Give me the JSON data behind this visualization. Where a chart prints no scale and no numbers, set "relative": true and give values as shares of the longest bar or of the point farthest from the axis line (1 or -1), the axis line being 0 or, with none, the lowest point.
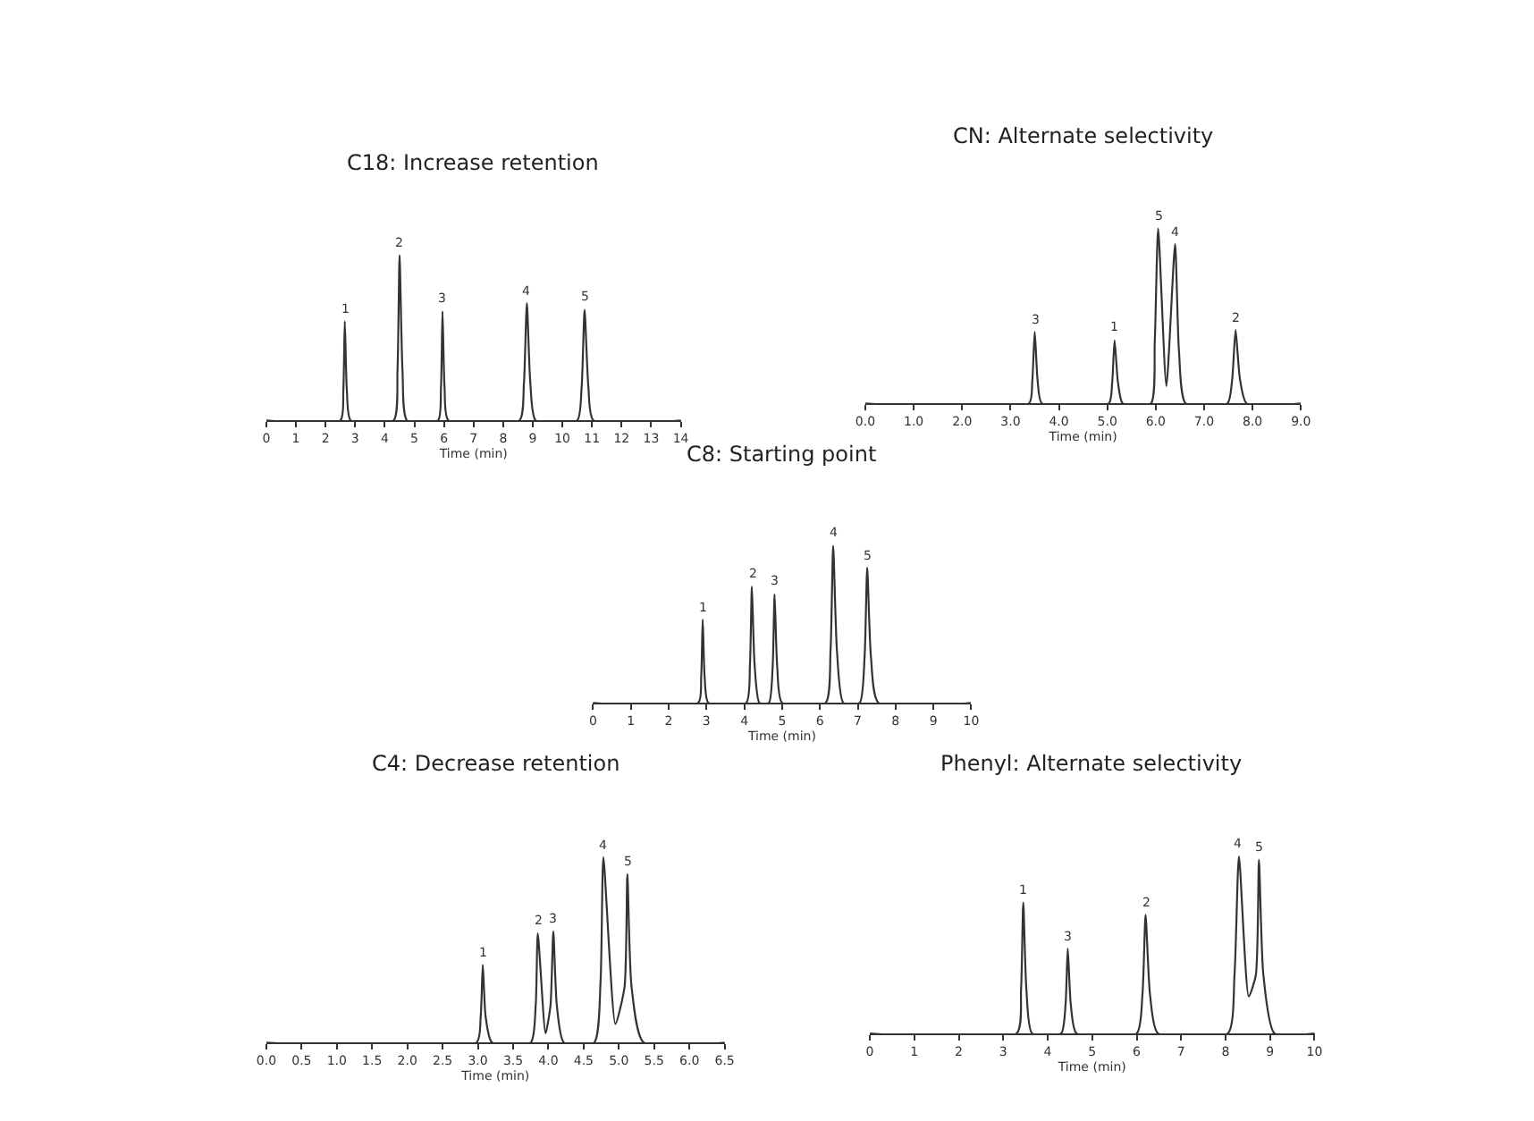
{
  "chart_data": [
    {
      "type": "line",
      "title": "C18: Increase retention",
      "xlabel": "Time (min)",
      "relative": true,
      "color": "#333333",
      "xlim": [
        0,
        14
      ],
      "xticks": [
        0,
        1,
        2,
        3,
        4,
        5,
        6,
        7,
        8,
        9,
        10,
        11,
        12,
        13,
        14
      ],
      "x": [
        0,
        2.5,
        2.6,
        2.65,
        2.72,
        2.85,
        4.3,
        4.43,
        4.5,
        4.6,
        4.75,
        5.8,
        5.9,
        5.95,
        6.02,
        6.15,
        8.55,
        8.7,
        8.8,
        8.92,
        9.1,
        10.5,
        10.65,
        10.75,
        10.88,
        11.05,
        14
      ],
      "values": [
        0,
        0,
        0.18,
        0.6,
        0.18,
        0,
        0,
        0.3,
        1.0,
        0.3,
        0,
        0,
        0.2,
        0.66,
        0.2,
        0,
        0,
        0.22,
        0.71,
        0.22,
        0,
        0,
        0.2,
        0.67,
        0.2,
        0,
        0
      ],
      "annotations": [
        {
          "text": "1",
          "x": 2.65,
          "y": 0.6
        },
        {
          "text": "2",
          "x": 4.5,
          "y": 1.0
        },
        {
          "text": "3",
          "x": 5.95,
          "y": 0.66
        },
        {
          "text": "4",
          "x": 8.8,
          "y": 0.71
        },
        {
          "text": "5",
          "x": 10.75,
          "y": 0.67
        }
      ]
    },
    {
      "type": "line",
      "title": "CN: Alternate selectivity",
      "xlabel": "Time (min)",
      "relative": true,
      "color": "#333333",
      "xlim": [
        0,
        9
      ],
      "xticks": [
        {
          "value": 0,
          "label": "0.0"
        },
        {
          "value": 1,
          "label": "1.0"
        },
        {
          "value": 2,
          "label": "2.0"
        },
        {
          "value": 3,
          "label": "3.0"
        },
        {
          "value": 4,
          "label": "4.0"
        },
        {
          "value": 5,
          "label": "5.0"
        },
        {
          "value": 6,
          "label": "6.0"
        },
        {
          "value": 7,
          "label": "7.0"
        },
        {
          "value": 8,
          "label": "8.0"
        },
        {
          "value": 9,
          "label": "9.0"
        }
      ],
      "x": [
        0,
        3.38,
        3.45,
        3.5,
        3.56,
        3.65,
        5.03,
        5.1,
        5.15,
        5.22,
        5.32,
        5.9,
        5.98,
        6.05,
        6.22,
        6.4,
        6.48,
        6.62,
        7.48,
        7.58,
        7.65,
        7.74,
        7.88,
        9
      ],
      "values": [
        0,
        0,
        0.13,
        0.41,
        0.13,
        0,
        0,
        0.12,
        0.36,
        0.12,
        0,
        0,
        0.35,
        1.0,
        0.1,
        0.91,
        0.3,
        0,
        0,
        0.14,
        0.42,
        0.14,
        0,
        0
      ],
      "annotations": [
        {
          "text": "3",
          "x": 3.5,
          "y": 0.41
        },
        {
          "text": "1",
          "x": 5.15,
          "y": 0.36
        },
        {
          "text": "5",
          "x": 6.05,
          "y": 1.0
        },
        {
          "text": "4",
          "x": 6.4,
          "y": 0.91
        },
        {
          "text": "2",
          "x": 7.65,
          "y": 0.42
        }
      ]
    },
    {
      "type": "line",
      "title": "C8: Starting point",
      "xlabel": "Time (min)",
      "relative": true,
      "color": "#333333",
      "xlim": [
        0,
        10
      ],
      "xticks": [
        0,
        1,
        2,
        3,
        4,
        5,
        6,
        7,
        8,
        9,
        10
      ],
      "x": [
        0,
        2.78,
        2.86,
        2.9,
        2.95,
        3.05,
        4.05,
        4.15,
        4.2,
        4.27,
        4.4,
        4.65,
        4.75,
        4.8,
        4.87,
        5.0,
        6.15,
        6.28,
        6.35,
        6.45,
        6.62,
        7.05,
        7.18,
        7.25,
        7.35,
        7.55,
        10
      ],
      "values": [
        0,
        0,
        0.17,
        0.53,
        0.17,
        0,
        0,
        0.25,
        0.74,
        0.25,
        0,
        0,
        0.23,
        0.69,
        0.23,
        0,
        0,
        0.33,
        1.0,
        0.33,
        0,
        0,
        0.29,
        0.86,
        0.29,
        0,
        0
      ],
      "annotations": [
        {
          "text": "1",
          "x": 2.9,
          "y": 0.53
        },
        {
          "text": "2",
          "x": 4.2,
          "y": 0.74
        },
        {
          "text": "3",
          "x": 4.8,
          "y": 0.69
        },
        {
          "text": "4",
          "x": 6.35,
          "y": 1.0
        },
        {
          "text": "5",
          "x": 7.25,
          "y": 0.86
        }
      ]
    },
    {
      "type": "line",
      "title": "C4: Decrease retention",
      "xlabel": "Time (min)",
      "relative": true,
      "color": "#333333",
      "xlim": [
        0,
        6.5
      ],
      "xticks": [
        {
          "value": 0,
          "label": "0.0"
        },
        {
          "value": 0.5,
          "label": "0.5"
        },
        {
          "value": 1,
          "label": "1.0"
        },
        {
          "value": 1.5,
          "label": "1.5"
        },
        {
          "value": 2,
          "label": "2.0"
        },
        {
          "value": 2.5,
          "label": "2.5"
        },
        {
          "value": 3,
          "label": "3.0"
        },
        {
          "value": 3.5,
          "label": "3.5"
        },
        {
          "value": 4,
          "label": "4.0"
        },
        {
          "value": 4.5,
          "label": "4.5"
        },
        {
          "value": 5,
          "label": "5.0"
        },
        {
          "value": 5.5,
          "label": "5.5"
        },
        {
          "value": 6,
          "label": "6.0"
        },
        {
          "value": 6.5,
          "label": "6.5"
        }
      ],
      "x": [
        0,
        2.98,
        3.04,
        3.07,
        3.11,
        3.2,
        3.75,
        3.82,
        3.85,
        3.96,
        4.03,
        4.07,
        4.12,
        4.22,
        4.65,
        4.74,
        4.78,
        4.95,
        5.08,
        5.12,
        5.18,
        5.35,
        6.5
      ],
      "values": [
        0,
        0,
        0.14,
        0.42,
        0.14,
        0,
        0,
        0.2,
        0.59,
        0.05,
        0.2,
        0.6,
        0.2,
        0,
        0,
        0.33,
        1.0,
        0.1,
        0.3,
        0.91,
        0.3,
        0,
        0
      ],
      "annotations": [
        {
          "text": "1",
          "x": 3.07,
          "y": 0.42
        },
        {
          "text": "2",
          "x": 3.85,
          "y": 0.59
        },
        {
          "text": "3",
          "x": 4.07,
          "y": 0.6
        },
        {
          "text": "4",
          "x": 4.78,
          "y": 1.0
        },
        {
          "text": "5",
          "x": 5.12,
          "y": 0.91
        }
      ]
    },
    {
      "type": "line",
      "title": "Phenyl: Alternate selectivity",
      "xlabel": "Time (min)",
      "relative": true,
      "color": "#333333",
      "xlim": [
        0,
        10
      ],
      "xticks": [
        0,
        1,
        2,
        3,
        4,
        5,
        6,
        7,
        8,
        9,
        10
      ],
      "x": [
        0,
        3.3,
        3.4,
        3.45,
        3.52,
        3.65,
        4.3,
        4.4,
        4.45,
        4.52,
        4.65,
        6.0,
        6.13,
        6.2,
        6.3,
        6.48,
        8.05,
        8.2,
        8.3,
        8.52,
        8.68,
        8.75,
        8.85,
        9.1,
        10
      ],
      "values": [
        0,
        0,
        0.25,
        0.74,
        0.25,
        0,
        0,
        0.16,
        0.48,
        0.16,
        0,
        0,
        0.22,
        0.67,
        0.22,
        0,
        0,
        0.33,
        1.0,
        0.21,
        0.33,
        0.98,
        0.33,
        0,
        0
      ],
      "annotations": [
        {
          "text": "1",
          "x": 3.45,
          "y": 0.74
        },
        {
          "text": "3",
          "x": 4.45,
          "y": 0.48
        },
        {
          "text": "2",
          "x": 6.2,
          "y": 0.67
        },
        {
          "text": "4",
          "x": 8.3,
          "y": 1.0
        },
        {
          "text": "5",
          "x": 8.75,
          "y": 0.98
        }
      ]
    }
  ]
}
